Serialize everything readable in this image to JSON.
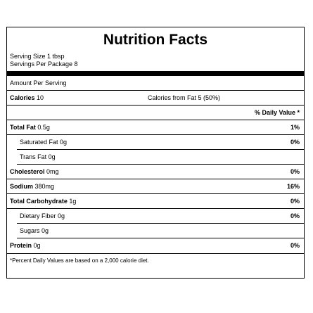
{
  "title": "Nutrition Facts",
  "serving_size": "Serving Size 1 tbsp",
  "servings_per_package": "Servings Per Package 8",
  "amount_per_serving": "Amount Per Serving",
  "calories": {
    "label": "Calories",
    "value": "10"
  },
  "calories_from_fat": "Calories from Fat 5 (50%)",
  "daily_value_header": "% Daily Value *",
  "nutrients": [
    {
      "label": "Total Fat",
      "value": "0.5g",
      "dv": "1%"
    },
    {
      "label": "",
      "value": "Saturated Fat 0g",
      "dv": "0%"
    },
    {
      "label": "",
      "value": "Trans Fat 0g",
      "dv": ""
    },
    {
      "label": "Cholesterol",
      "value": "0mg",
      "dv": "0%"
    },
    {
      "label": "Sodium",
      "value": "380mg",
      "dv": "16%"
    },
    {
      "label": "Total Carbohydrate",
      "value": "1g",
      "dv": "0%"
    },
    {
      "label": "",
      "value": "Dietary Fiber 0g",
      "dv": "0%"
    },
    {
      "label": "",
      "value": "Sugars 0g",
      "dv": ""
    },
    {
      "label": "Protein",
      "value": "0g",
      "dv": "0%"
    }
  ],
  "footnote": "*Percent Daily Values are based on a 2,000 calorie diet."
}
